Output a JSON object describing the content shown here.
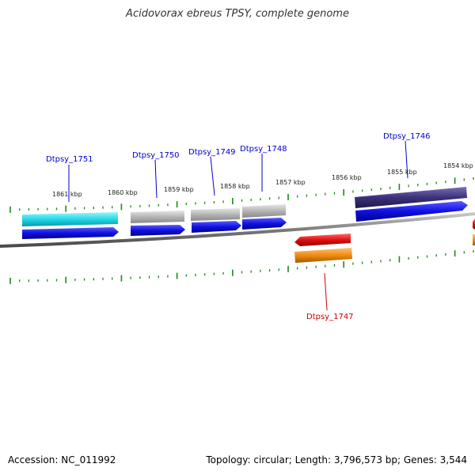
{
  "title": "Acidovorax ebreus TPSY, complete genome",
  "footer": {
    "accession": "Accession: NC_011992",
    "summary": "Topology: circular; Length: 3,796,573 bp; Genes: 3,544"
  },
  "ruler": {
    "labels": [
      "1861 kbp",
      "1860 kbp",
      "1859 kbp",
      "1858 kbp",
      "1857 kbp",
      "1856 kbp",
      "1855 kbp",
      "1854 kbp"
    ]
  },
  "gene_labels": [
    {
      "name": "Dtpsy_1751",
      "color": "#0000cc"
    },
    {
      "name": "Dtpsy_1750",
      "color": "#0000cc"
    },
    {
      "name": "Dtpsy_1749",
      "color": "#0000cc"
    },
    {
      "name": "Dtpsy_1748",
      "color": "#0000cc"
    },
    {
      "name": "Dtpsy_1746",
      "color": "#0000cc"
    },
    {
      "name": "Dtpsy_1747",
      "color": "#cc0000"
    }
  ],
  "colors": {
    "tick": "#1a8a1a",
    "backbone": "#7a7a7a",
    "cds_forward": "#1010e0",
    "cds_reverse": "#e01010",
    "cyan_gene": "#22d8e8",
    "gray_gene": "#b4b4b4",
    "purple_gene": "#3c3278",
    "orange_gene": "#f08c10"
  }
}
